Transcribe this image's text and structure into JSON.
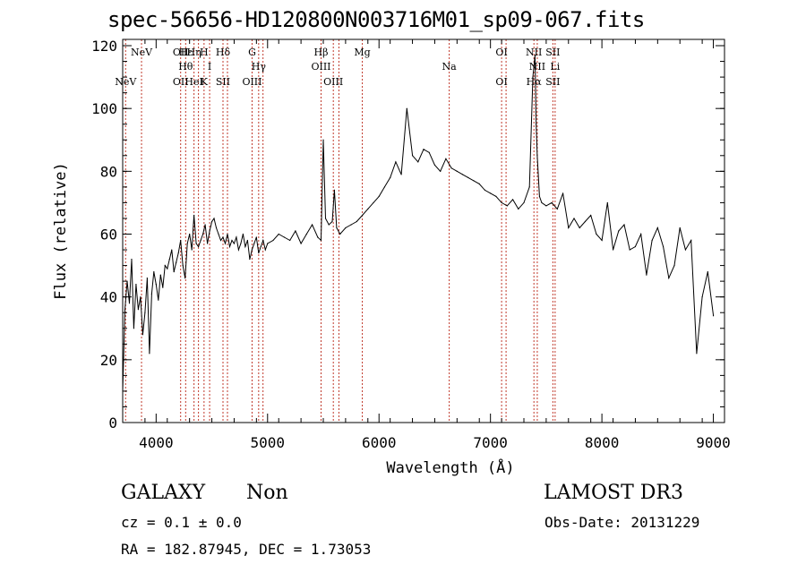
{
  "chart_data": {
    "type": "line",
    "title": "spec-56656-HD120800N003716M01_sp09-067.fits",
    "xlabel": "Wavelength (Å)",
    "ylabel": "Flux (relative)",
    "xlim": [
      3700,
      9100
    ],
    "ylim": [
      0,
      122
    ],
    "xticks": [
      4000,
      5000,
      6000,
      7000,
      8000,
      9000
    ],
    "yticks": [
      0,
      20,
      40,
      60,
      80,
      100,
      120
    ],
    "line_color": "#000000",
    "marker_color": "#c0392b",
    "series": [
      {
        "x": [
          3700,
          3720,
          3740,
          3760,
          3780,
          3800,
          3820,
          3840,
          3860,
          3880,
          3900,
          3920,
          3940,
          3960,
          3980,
          4000,
          4020,
          4040,
          4060,
          4080,
          4100,
          4120,
          4140,
          4160,
          4180,
          4200,
          4220,
          4240,
          4260,
          4280,
          4300,
          4320,
          4340,
          4360,
          4380,
          4400,
          4420,
          4440,
          4460,
          4480,
          4500,
          4520,
          4540,
          4560,
          4580,
          4600,
          4620,
          4640,
          4660,
          4680,
          4700,
          4720,
          4740,
          4760,
          4780,
          4800,
          4820,
          4840,
          4860,
          4880,
          4900,
          4920,
          4940,
          4960,
          4980,
          5000,
          5050,
          5100,
          5150,
          5200,
          5250,
          5300,
          5350,
          5400,
          5450,
          5480,
          5500,
          5520,
          5550,
          5580,
          5600,
          5620,
          5650,
          5700,
          5750,
          5800,
          5850,
          5900,
          5950,
          6000,
          6050,
          6100,
          6150,
          6200,
          6250,
          6300,
          6350,
          6400,
          6450,
          6500,
          6550,
          6600,
          6650,
          6700,
          6750,
          6800,
          6850,
          6900,
          6950,
          7000,
          7050,
          7100,
          7150,
          7200,
          7250,
          7300,
          7350,
          7380,
          7400,
          7410,
          7420,
          7440,
          7460,
          7500,
          7550,
          7600,
          7650,
          7700,
          7750,
          7800,
          7850,
          7900,
          7950,
          8000,
          8050,
          8100,
          8150,
          8200,
          8250,
          8300,
          8350,
          8400,
          8450,
          8500,
          8550,
          8600,
          8650,
          8700,
          8750,
          8800,
          8850,
          8900,
          8950,
          9000
        ],
        "y": [
          10,
          36,
          45,
          38,
          52,
          30,
          44,
          36,
          40,
          28,
          35,
          46,
          22,
          41,
          48,
          44,
          39,
          47,
          43,
          50,
          49,
          52,
          55,
          48,
          51,
          54,
          58,
          50,
          46,
          57,
          60,
          55,
          66,
          57,
          56,
          58,
          60,
          63,
          57,
          61,
          64,
          65,
          62,
          60,
          58,
          59,
          57,
          60,
          56,
          58,
          57,
          59,
          55,
          57,
          60,
          56,
          58,
          52,
          55,
          57,
          59,
          54,
          56,
          58,
          55,
          57,
          58,
          60,
          59,
          58,
          61,
          57,
          60,
          63,
          59,
          58,
          90,
          65,
          63,
          64,
          74,
          62,
          60,
          62,
          63,
          64,
          66,
          68,
          70,
          72,
          75,
          78,
          83,
          79,
          100,
          85,
          83,
          87,
          86,
          82,
          80,
          84,
          81,
          80,
          79,
          78,
          77,
          76,
          74,
          73,
          72,
          70,
          69,
          71,
          68,
          70,
          75,
          110,
          117,
          95,
          85,
          72,
          70,
          69,
          70,
          68,
          73,
          62,
          65,
          62,
          64,
          66,
          60,
          58,
          70,
          55,
          61,
          63,
          55,
          56,
          60,
          47,
          58,
          62,
          56,
          46,
          50,
          62,
          55,
          58,
          22,
          40,
          48,
          34
        ]
      }
    ],
    "lines": [
      {
        "wl": 3726,
        "top": "",
        "bottom": "NeV"
      },
      {
        "wl": 3869,
        "top": "NeV",
        "bottom": ""
      },
      {
        "wl": 4220,
        "top": "OII",
        "bottom": "OII"
      },
      {
        "wl": 4265,
        "top": "Hε",
        "bottom": "Hθ"
      },
      {
        "wl": 4340,
        "top": "Hη",
        "bottom": "HeI"
      },
      {
        "wl": 4380,
        "top": "",
        "bottom": ""
      },
      {
        "wl": 4430,
        "top": "H",
        "bottom": "K"
      },
      {
        "wl": 4480,
        "top": "",
        "bottom": "I"
      },
      {
        "wl": 4600,
        "top": "Hδ",
        "bottom": "SII"
      },
      {
        "wl": 4640,
        "top": "",
        "bottom": ""
      },
      {
        "wl": 4861,
        "top": "G",
        "bottom": "OIII"
      },
      {
        "wl": 4920,
        "top": "",
        "bottom": "Hγ"
      },
      {
        "wl": 4959,
        "top": "",
        "bottom": ""
      },
      {
        "wl": 5480,
        "top": "Hβ",
        "bottom": "OIII"
      },
      {
        "wl": 5590,
        "top": "",
        "bottom": "OIII"
      },
      {
        "wl": 5640,
        "top": "",
        "bottom": ""
      },
      {
        "wl": 5850,
        "top": "Mg",
        "bottom": ""
      },
      {
        "wl": 6630,
        "top": "",
        "bottom": "Na"
      },
      {
        "wl": 7100,
        "top": "OI",
        "bottom": "OI"
      },
      {
        "wl": 7140,
        "top": "",
        "bottom": ""
      },
      {
        "wl": 7390,
        "top": "NII",
        "bottom": "Hα"
      },
      {
        "wl": 7420,
        "top": "",
        "bottom": "NII"
      },
      {
        "wl": 7560,
        "top": "SII",
        "bottom": "SII"
      },
      {
        "wl": 7580,
        "top": "",
        "bottom": "Li"
      }
    ]
  },
  "info": {
    "class_label": "GALAXY",
    "subclass_label": "Non",
    "survey": "LAMOST DR3",
    "cz_text": "cz = 0.1 ± 0.0",
    "obs_date": "Obs-Date: 20131229",
    "radec": "RA = 182.87945, DEC =    1.73053"
  }
}
